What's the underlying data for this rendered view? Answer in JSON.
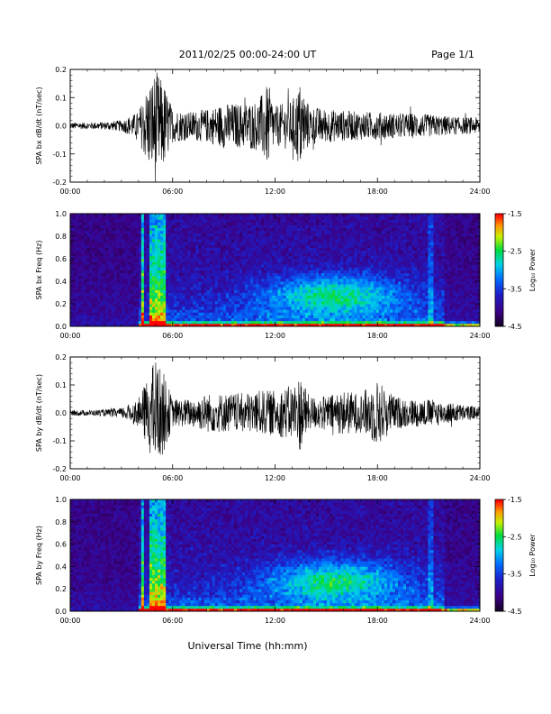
{
  "header": {
    "title": "2011/02/25  00:00-24:00 UT",
    "page": "Page 1/1"
  },
  "footer": {
    "xlabel": "Universal Time (hh:mm)"
  },
  "colorbar": {
    "label": "Log₁₀ Power",
    "ticks": [
      "-1.5",
      "-2.5",
      "-3.5",
      "-4.5"
    ],
    "range": [
      -4.5,
      -1.5
    ]
  },
  "chart_data": [
    {
      "type": "line",
      "ylabel": "SPA bx dB/dt (nT/sec)",
      "xticks": [
        "00:00",
        "06:00",
        "12:00",
        "18:00",
        "24:00"
      ],
      "xlim": [
        0,
        24
      ],
      "ylim": [
        -0.2,
        0.2
      ],
      "yticks": [
        "-0.2",
        "-0.1",
        "0.0",
        "0.1",
        "0.2"
      ],
      "series": [
        {
          "x": [
            0,
            1,
            2,
            3,
            4,
            4.5,
            5,
            5.5,
            6,
            7,
            8,
            9,
            10,
            11,
            11.6,
            12,
            13,
            13.5,
            14,
            15,
            16,
            17,
            18,
            19,
            20,
            21,
            22,
            23,
            24
          ],
          "envelope": [
            0.012,
            0.012,
            0.014,
            0.02,
            0.05,
            0.14,
            0.2,
            0.15,
            0.06,
            0.05,
            0.06,
            0.08,
            0.08,
            0.09,
            0.15,
            0.07,
            0.09,
            0.16,
            0.07,
            0.06,
            0.055,
            0.05,
            0.05,
            0.045,
            0.045,
            0.04,
            0.035,
            0.03,
            0.03
          ]
        }
      ]
    },
    {
      "type": "heatmap",
      "ylabel": "SPA bx Freq (Hz)",
      "xticks": [
        "00:00",
        "06:00",
        "12:00",
        "18:00",
        "24:00"
      ],
      "xlim": [
        0,
        24
      ],
      "ylim": [
        0.0,
        1.0
      ],
      "yticks": [
        "0.0",
        "0.2",
        "0.4",
        "0.6",
        "0.8",
        "1.0"
      ],
      "zlim": [
        -4.5,
        -1.5
      ]
    },
    {
      "type": "line",
      "ylabel": "SPA by dB/dt (nT/sec)",
      "xticks": [
        "00:00",
        "06:00",
        "12:00",
        "18:00",
        "24:00"
      ],
      "xlim": [
        0,
        24
      ],
      "ylim": [
        -0.2,
        0.2
      ],
      "yticks": [
        "-0.2",
        "-0.1",
        "0.0",
        "0.1",
        "0.2"
      ],
      "series": [
        {
          "x": [
            0,
            1,
            2,
            3,
            4,
            4.5,
            5,
            5.5,
            6,
            7,
            8,
            9,
            10,
            11,
            12,
            13,
            13.5,
            14,
            15,
            16,
            17,
            18,
            19,
            20,
            21,
            22,
            23,
            24
          ],
          "envelope": [
            0.01,
            0.01,
            0.012,
            0.018,
            0.05,
            0.12,
            0.2,
            0.14,
            0.05,
            0.05,
            0.07,
            0.07,
            0.07,
            0.08,
            0.08,
            0.1,
            0.14,
            0.06,
            0.06,
            0.08,
            0.07,
            0.12,
            0.06,
            0.05,
            0.05,
            0.04,
            0.03,
            0.02
          ]
        }
      ]
    },
    {
      "type": "heatmap",
      "ylabel": "SPA by Freq (Hz)",
      "xticks": [
        "00:00",
        "06:00",
        "12:00",
        "18:00",
        "24:00"
      ],
      "xlim": [
        0,
        24
      ],
      "ylim": [
        0.0,
        1.0
      ],
      "yticks": [
        "0.0",
        "0.2",
        "0.4",
        "0.6",
        "0.8",
        "1.0"
      ],
      "zlim": [
        -4.5,
        -1.5
      ]
    }
  ]
}
